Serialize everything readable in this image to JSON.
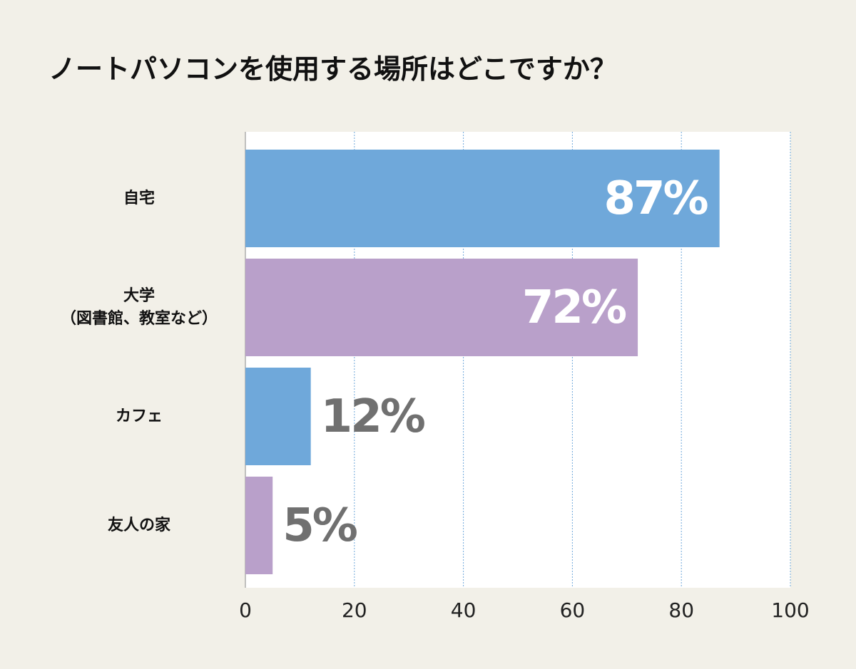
{
  "chart_data": {
    "type": "barh",
    "title": "ノートパソコンを使用する場所はどこですか？",
    "categories": [
      "自宅",
      "大学\n（図書館、教室など）",
      "カフェ",
      "友人の家"
    ],
    "values": [
      87,
      72,
      12,
      5
    ],
    "value_labels": [
      "87%",
      "72%",
      "12%",
      "5%"
    ],
    "colors": [
      "#6fa8da",
      "#b9a0ca",
      "#6fa8da",
      "#b9a0ca"
    ],
    "xlim": [
      0,
      100
    ],
    "xticks": [
      0,
      20,
      40,
      60,
      80,
      100
    ],
    "grid": true
  }
}
